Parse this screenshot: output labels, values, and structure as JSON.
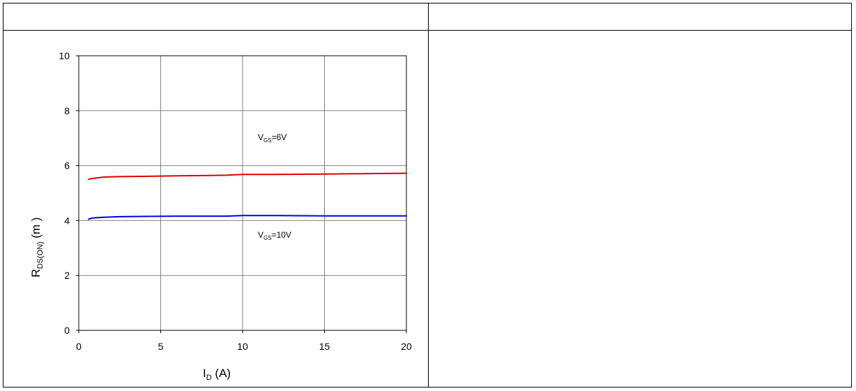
{
  "header": {
    "left_cell": "",
    "right_cell": ""
  },
  "chart_data": {
    "type": "line",
    "ylabel_main": "R",
    "ylabel_sub": "DS(ON)",
    "ylabel_suffix": " (m   )",
    "xlabel_main": "I",
    "xlabel_sub": "D",
    "xlabel_suffix": " (A)",
    "xlim": [
      0,
      20
    ],
    "ylim": [
      0,
      10
    ],
    "xticks": [
      0,
      5,
      10,
      15,
      20
    ],
    "yticks": [
      0,
      2,
      4,
      6,
      8,
      10
    ],
    "grid": true,
    "series": [
      {
        "label_main": "V",
        "label_sub": "GS",
        "label_suffix": "=6V",
        "color": "#e00000",
        "x": [
          0.6,
          0.8,
          1.5,
          2.5,
          4,
          6,
          8,
          9,
          10,
          12,
          15,
          18,
          20
        ],
        "y": [
          5.5,
          5.53,
          5.58,
          5.6,
          5.61,
          5.63,
          5.64,
          5.65,
          5.68,
          5.68,
          5.69,
          5.71,
          5.72
        ]
      },
      {
        "label_main": "V",
        "label_sub": "GS",
        "label_suffix": "=10V",
        "color": "#0000e0",
        "x": [
          0.6,
          0.8,
          1.5,
          2.5,
          4,
          6,
          8,
          9,
          10,
          12,
          15,
          18,
          20
        ],
        "y": [
          4.05,
          4.09,
          4.12,
          4.14,
          4.15,
          4.16,
          4.16,
          4.16,
          4.18,
          4.18,
          4.17,
          4.17,
          4.17
        ]
      }
    ]
  }
}
